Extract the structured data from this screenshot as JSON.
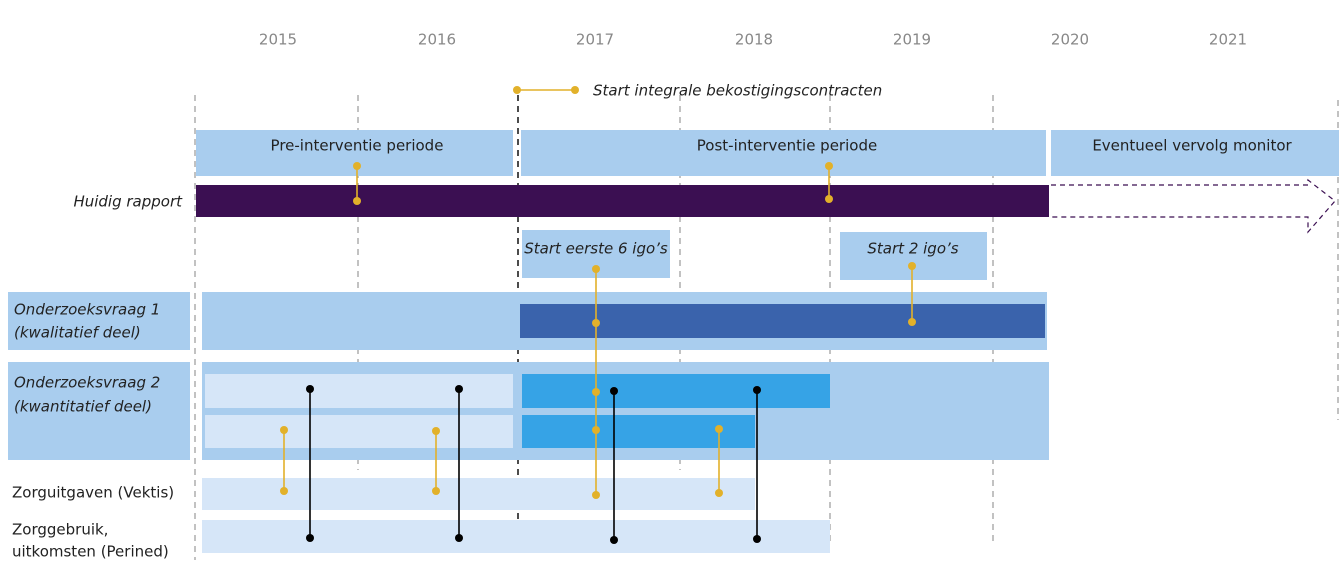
{
  "years": [
    "2015",
    "2016",
    "2017",
    "2018",
    "2019",
    "2020",
    "2021"
  ],
  "legend": "Start integrale bekostigingscontracten",
  "periods": {
    "pre": "Pre-interventie periode",
    "post": "Post-interventie periode",
    "follow_up": "Eventueel vervolg monitor"
  },
  "current_report": "Huidig rapport",
  "events": {
    "first": "Start eerste 6 igo’s",
    "second": "Start 2 igo’s"
  },
  "rows": [
    {
      "line1": "Onderzoeksvraag 1",
      "line2": "(kwalitatief deel)"
    },
    {
      "line1": "Onderzoeksvraag 2",
      "line2": "(kwantitatief deel)"
    },
    {
      "line1": "Zorguitgaven (Vektis)"
    },
    {
      "line1": "Zorggebruik,",
      "line2": "uitkomsten (Perined)"
    }
  ]
}
